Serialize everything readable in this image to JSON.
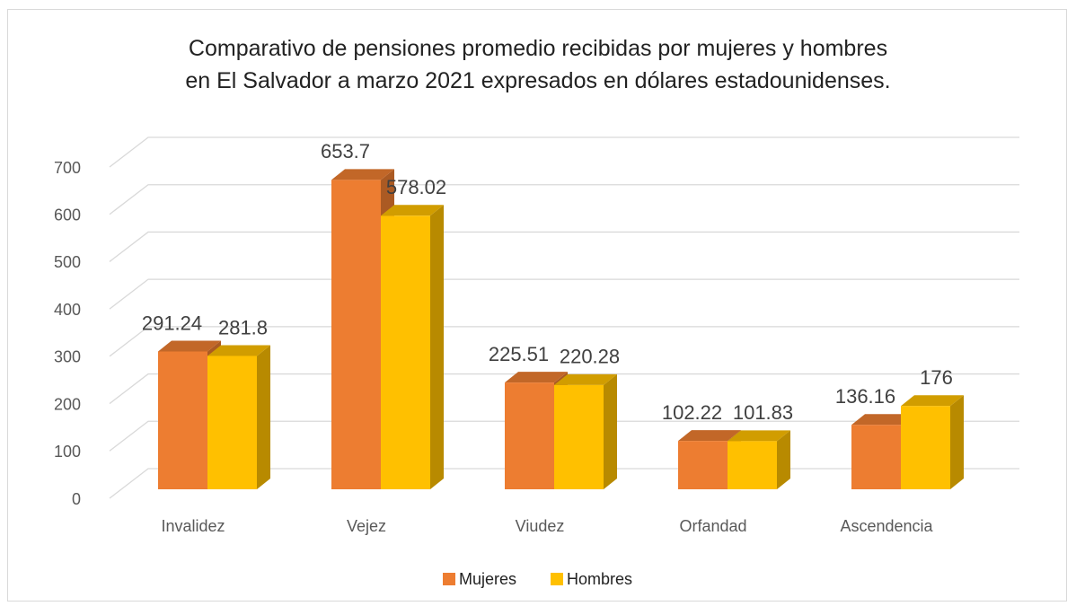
{
  "chart_data": {
    "type": "bar3d",
    "title": "Comparativo de pensiones promedio recibidas por mujeres y hombres\nen El Salvador a marzo 2021 expresados en dólares estadounidenses.",
    "categories": [
      "Invalidez",
      "Vejez",
      "Viudez",
      "Orfandad",
      "Ascendencia"
    ],
    "series": [
      {
        "name": "Mujeres",
        "color": "#ed7d31",
        "values": [
          291.24,
          653.7,
          225.51,
          102.22,
          136.16
        ]
      },
      {
        "name": "Hombres",
        "color": "#ffc000",
        "values": [
          281.8,
          578.02,
          220.28,
          101.83,
          176
        ]
      }
    ],
    "ylim": [
      0,
      700
    ],
    "yticks": [
      0,
      100,
      200,
      300,
      400,
      500,
      600,
      700
    ],
    "grid": true,
    "legend": "bottom"
  }
}
